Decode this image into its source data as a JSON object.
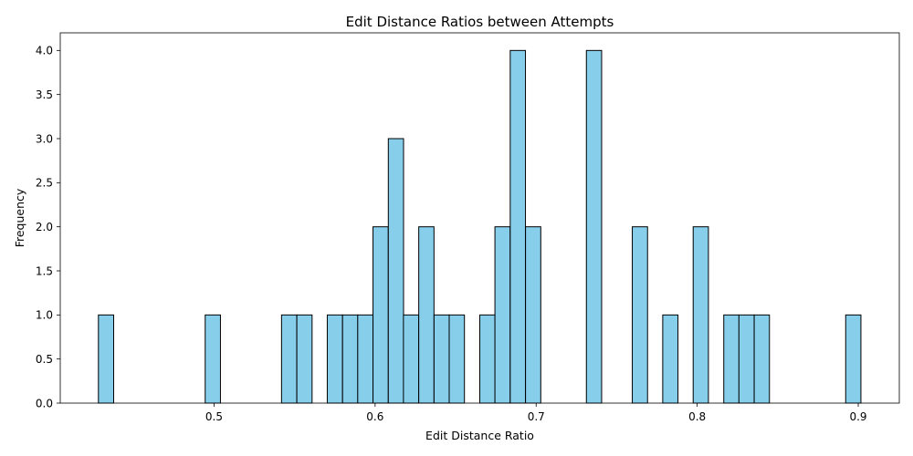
{
  "chart_data": {
    "type": "bar",
    "title": "Edit Distance Ratios between Attempts",
    "xlabel": "Edit Distance Ratio",
    "ylabel": "Frequency",
    "xlim": [
      0.4045,
      0.9255
    ],
    "ylim": [
      0,
      4.2
    ],
    "bin_width": 0.00947,
    "x_ticks": [
      {
        "value": 0.5,
        "label": "0.5"
      },
      {
        "value": 0.6,
        "label": "0.6"
      },
      {
        "value": 0.7,
        "label": "0.7"
      },
      {
        "value": 0.8,
        "label": "0.8"
      },
      {
        "value": 0.9,
        "label": "0.9"
      }
    ],
    "y_ticks": [
      {
        "value": 0.0,
        "label": "0.0"
      },
      {
        "value": 0.5,
        "label": "0.5"
      },
      {
        "value": 1.0,
        "label": "1.0"
      },
      {
        "value": 1.5,
        "label": "1.5"
      },
      {
        "value": 2.0,
        "label": "2.0"
      },
      {
        "value": 2.5,
        "label": "2.5"
      },
      {
        "value": 3.0,
        "label": "3.0"
      },
      {
        "value": 3.5,
        "label": "3.5"
      },
      {
        "value": 4.0,
        "label": "4.0"
      }
    ],
    "bins": [
      {
        "x": 0.4282,
        "count": 1
      },
      {
        "x": 0.4945,
        "count": 1
      },
      {
        "x": 0.5419,
        "count": 1
      },
      {
        "x": 0.5514,
        "count": 1
      },
      {
        "x": 0.5703,
        "count": 1
      },
      {
        "x": 0.5798,
        "count": 1
      },
      {
        "x": 0.5892,
        "count": 1
      },
      {
        "x": 0.5987,
        "count": 2
      },
      {
        "x": 0.6082,
        "count": 3
      },
      {
        "x": 0.6176,
        "count": 1
      },
      {
        "x": 0.6271,
        "count": 2
      },
      {
        "x": 0.6366,
        "count": 1
      },
      {
        "x": 0.646,
        "count": 1
      },
      {
        "x": 0.665,
        "count": 1
      },
      {
        "x": 0.6744,
        "count": 2
      },
      {
        "x": 0.6839,
        "count": 4
      },
      {
        "x": 0.6934,
        "count": 2
      },
      {
        "x": 0.7312,
        "count": 4
      },
      {
        "x": 0.7597,
        "count": 2
      },
      {
        "x": 0.7786,
        "count": 1
      },
      {
        "x": 0.7975,
        "count": 2
      },
      {
        "x": 0.8165,
        "count": 1
      },
      {
        "x": 0.8259,
        "count": 1
      },
      {
        "x": 0.8354,
        "count": 1
      },
      {
        "x": 0.8922,
        "count": 1
      }
    ],
    "bar_color": "#87ceeb",
    "edge_color": "#000000",
    "grid": false,
    "legend": "none"
  }
}
